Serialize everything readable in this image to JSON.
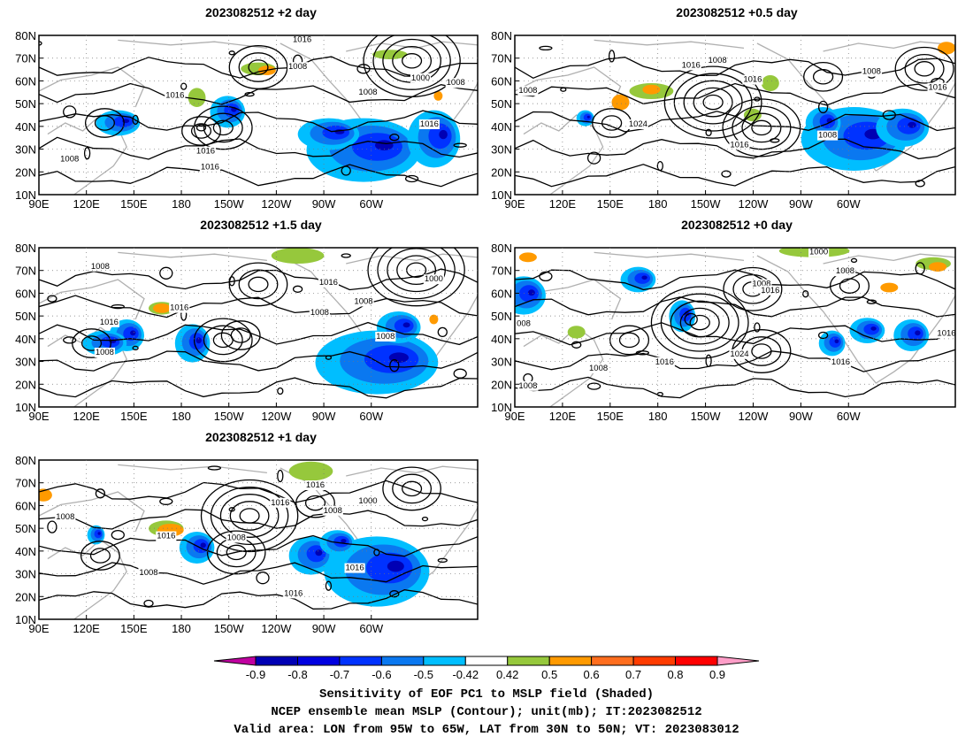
{
  "panels": [
    {
      "title": "2023082512  +2 day",
      "contour_labels": [
        "1016",
        "1008",
        "1000",
        "1016",
        "1008",
        "1008",
        "1016",
        "1016",
        "1008",
        "1016"
      ]
    },
    {
      "title": "2023082512  +0.5 day",
      "contour_labels": [
        "1008",
        "1016",
        "1008",
        "1016",
        "1008",
        "1016",
        "1024",
        "1016",
        "1008"
      ]
    },
    {
      "title": "2023082512  +1.5 day",
      "contour_labels": [
        "1008",
        "1016",
        "1000",
        "1008",
        "1016",
        "1008",
        "1016",
        "1008",
        "1008"
      ]
    },
    {
      "title": "2023082512  +0 day",
      "contour_labels": [
        "1000",
        "1008",
        "1008",
        "1016",
        "008",
        "1016",
        "1024",
        "1016",
        "1016",
        "1008",
        "1008"
      ]
    },
    {
      "title": "2023082512  +1 day",
      "contour_labels": [
        "1016",
        "1016",
        "1008",
        "1000",
        "1008",
        "1016",
        "1008",
        "1008",
        "1016",
        "1016"
      ]
    }
  ],
  "map_axes": {
    "lat_ticks": [
      "80N",
      "70N",
      "60N",
      "50N",
      "40N",
      "30N",
      "20N",
      "10N"
    ],
    "lon_ticks": [
      "90E",
      "120E",
      "150E",
      "180",
      "150W",
      "120W",
      "90W",
      "60W"
    ]
  },
  "colorbar": {
    "ticks": [
      "-0.9",
      "-0.8",
      "-0.7",
      "-0.6",
      "-0.5",
      "-0.42",
      "0.42",
      "0.5",
      "0.6",
      "0.7",
      "0.8",
      "0.9"
    ],
    "colors": {
      "lower_extend": "#c000a0",
      "bins": [
        "#0000b4",
        "#0000e0",
        "#0032ff",
        "#0a78f0",
        "#00beff",
        "#ffffff",
        "#96c83c",
        "#ff9a00",
        "#ff6e1e",
        "#ff3c00",
        "#ff0000"
      ],
      "upper_extend": "#ff9ec8"
    }
  },
  "caption": {
    "line1": "Sensitivity of EOF PC1 to MSLP field (Shaded)",
    "line2": "NCEP ensemble mean MSLP (Contour); unit(mb); IT:2023082512",
    "line3": "Valid area: LON from 95W to 65W, LAT from 30N to 50N; VT: 2023083012"
  }
}
